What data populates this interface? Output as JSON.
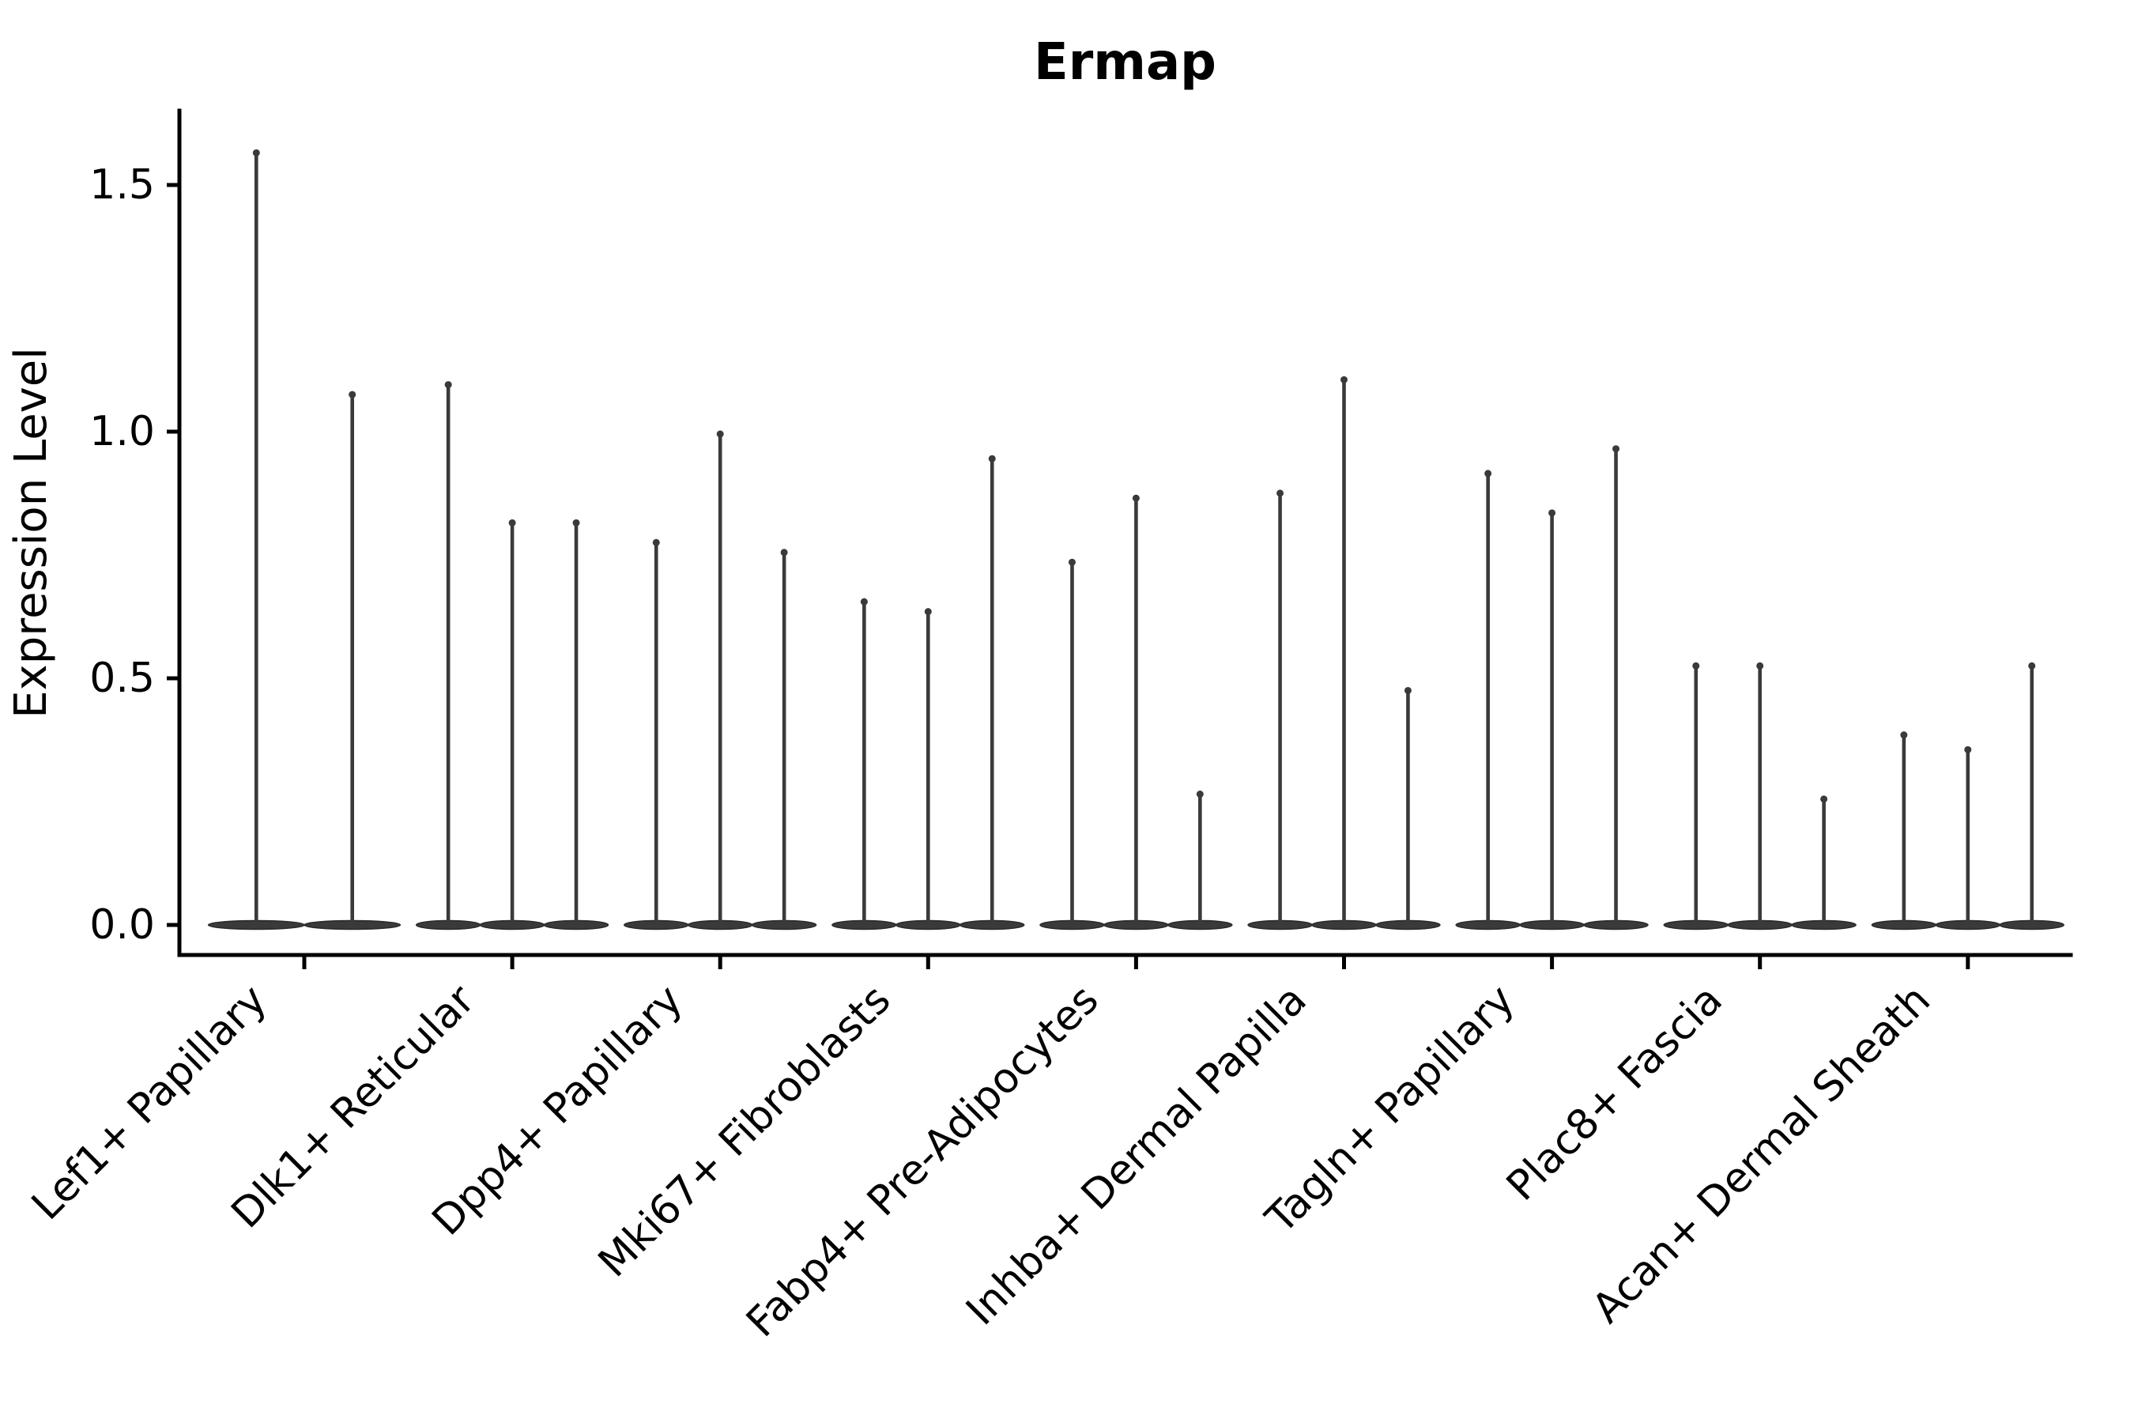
{
  "chart_data": {
    "type": "violin",
    "title": "Ermap",
    "ylabel": "Expression Level",
    "xlabel": "",
    "grid": false,
    "legend_position": "none",
    "ylim": [
      -0.06,
      1.66
    ],
    "ytick_values": [
      0.0,
      0.5,
      1.0,
      1.5
    ],
    "ytick_labels": [
      "0.0",
      "0.5",
      "1.0",
      "1.5"
    ],
    "colors": {
      "violin_fill": "#3a3a3a",
      "violin_edge": "#2a2a2a",
      "axis": "#000000",
      "text": "#000000",
      "background": "#ffffff"
    },
    "description": "Violin plot of Ermap expression; each category shows 2-3 needle-like violins (flat body at 0 with a thin spike to the max expression value).",
    "groups": [
      {
        "label": "Lef1+ Papillary",
        "spikes": [
          1.57,
          1.08
        ]
      },
      {
        "label": "Dlk1+ Reticular",
        "spikes": [
          1.1,
          0.82,
          0.82
        ]
      },
      {
        "label": "Dpp4+ Papillary",
        "spikes": [
          0.78,
          1.0,
          0.76
        ]
      },
      {
        "label": "Mki67+ Fibroblasts",
        "spikes": [
          0.66,
          0.64,
          0.95
        ]
      },
      {
        "label": "Fabp4+ Pre-Adipocytes",
        "spikes": [
          0.74,
          0.87,
          0.27
        ]
      },
      {
        "label": "Inhba+ Dermal Papilla",
        "spikes": [
          0.88,
          1.11,
          0.48
        ]
      },
      {
        "label": "Tagln+ Papillary",
        "spikes": [
          0.92,
          0.84,
          0.97
        ]
      },
      {
        "label": "Plac8+ Fascia",
        "spikes": [
          0.53,
          0.53,
          0.26
        ]
      },
      {
        "label": "Acan+ Dermal Sheath",
        "spikes": [
          0.39,
          0.36,
          0.53
        ]
      }
    ]
  }
}
